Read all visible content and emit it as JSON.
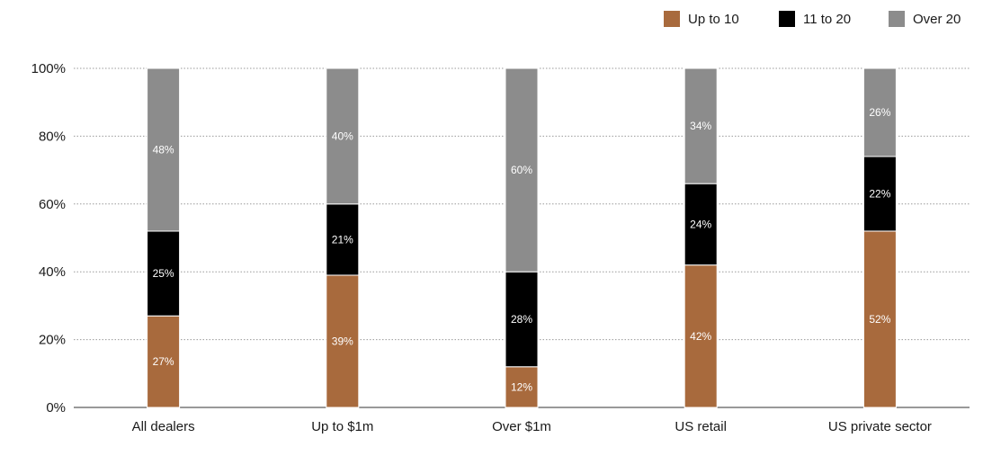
{
  "chart_data": {
    "type": "bar",
    "stacked": true,
    "categories": [
      "All dealers",
      "Up to $1m",
      "Over $1m",
      "US retail",
      "US private sector"
    ],
    "series": [
      {
        "name": "Up to 10",
        "color": "#a86a3d",
        "label_color": "#ffffff",
        "values": [
          27,
          39,
          12,
          42,
          52
        ]
      },
      {
        "name": "11 to 20",
        "color": "#000000",
        "label_color": "#ffffff",
        "values": [
          25,
          21,
          28,
          24,
          22
        ]
      },
      {
        "name": "Over 20",
        "color": "#8c8c8c",
        "label_color": "#ffffff",
        "values": [
          48,
          40,
          60,
          34,
          26
        ]
      }
    ],
    "ylim": [
      0,
      100
    ],
    "yticks": [
      0,
      20,
      40,
      60,
      80,
      100
    ],
    "ytick_labels": [
      "0%",
      "20%",
      "40%",
      "60%",
      "80%",
      "100%"
    ],
    "value_suffix": "%",
    "grid": true,
    "legend_position": "top-right",
    "title": "",
    "xlabel": "",
    "ylabel": ""
  }
}
